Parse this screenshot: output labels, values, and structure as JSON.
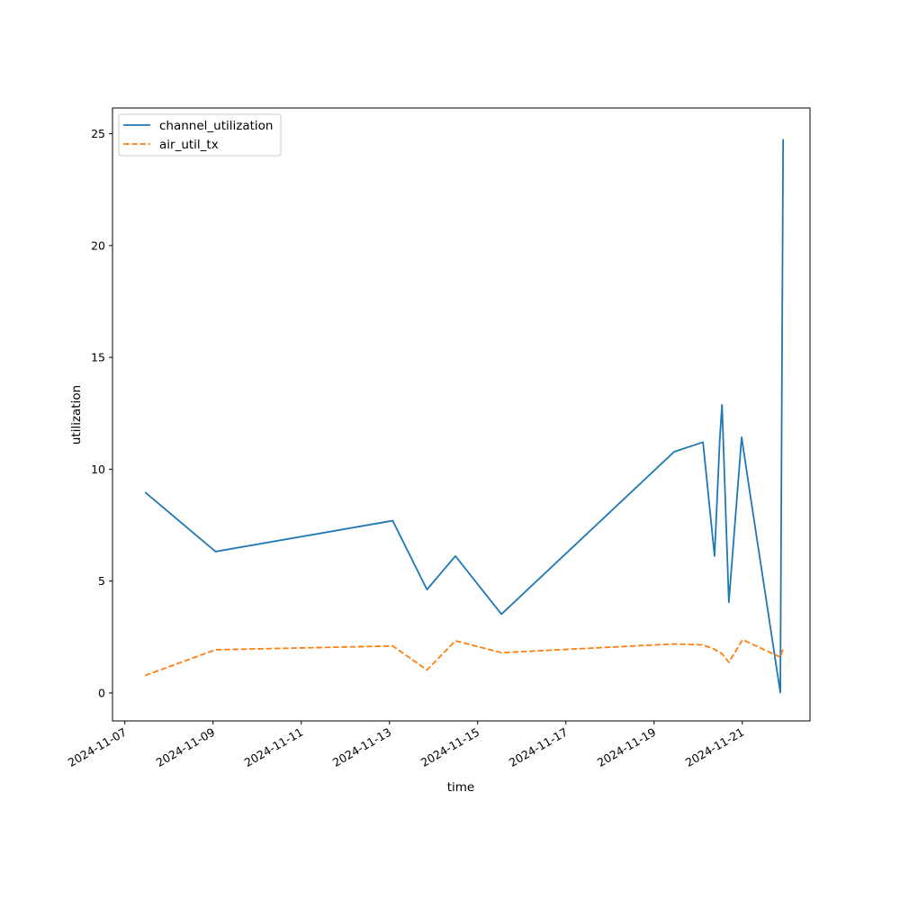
{
  "chart_data": {
    "type": "line",
    "title": "",
    "xlabel": "time",
    "ylabel": "utilization",
    "x_type": "date",
    "xlim": [
      "2024-11-06T17:17:00",
      "2024-11-22T12:50:00"
    ],
    "ylim": [
      -1.25,
      26.15
    ],
    "x_ticks": [
      "2024-11-07",
      "2024-11-09",
      "2024-11-11",
      "2024-11-13",
      "2024-11-15",
      "2024-11-17",
      "2024-11-19",
      "2024-11-21"
    ],
    "x_tick_labels": [
      "2024-11-07",
      "2024-11-09",
      "2024-11-11",
      "2024-11-13",
      "2024-11-15",
      "2024-11-17",
      "2024-11-19",
      "2024-11-21"
    ],
    "y_ticks": [
      0,
      5,
      10,
      15,
      20,
      25
    ],
    "y_tick_labels": [
      "0",
      "5",
      "10",
      "15",
      "20",
      "25"
    ],
    "grid": false,
    "legend_position": "top-left",
    "series": [
      {
        "name": "channel_utilization",
        "color": "#1f77b4",
        "style": "solid",
        "points": [
          {
            "x": "2024-11-07T11:01:00",
            "y": 8.97
          },
          {
            "x": "2024-11-09T01:20:00",
            "y": 6.32
          },
          {
            "x": "2024-11-13T01:46:00",
            "y": 7.7
          },
          {
            "x": "2024-11-13T20:24:00",
            "y": 4.62
          },
          {
            "x": "2024-11-14T11:53:00",
            "y": 6.12
          },
          {
            "x": "2024-11-15T12:55:00",
            "y": 3.52
          },
          {
            "x": "2024-11-19T10:53:00",
            "y": 10.78
          },
          {
            "x": "2024-11-20T02:37:00",
            "y": 11.21
          },
          {
            "x": "2024-11-20T08:54:00",
            "y": 6.12
          },
          {
            "x": "2024-11-20T11:48:00",
            "y": 11.43
          },
          {
            "x": "2024-11-20T12:58:00",
            "y": 12.88
          },
          {
            "x": "2024-11-20T16:40:00",
            "y": 4.05
          },
          {
            "x": "2024-11-20T23:38:00",
            "y": 11.43
          },
          {
            "x": "2024-11-21T04:14:00",
            "y": 8.9
          },
          {
            "x": "2024-11-21T20:41:00",
            "y": 0.02
          },
          {
            "x": "2024-11-21T22:13:00",
            "y": 24.75
          }
        ]
      },
      {
        "name": "air_util_tx",
        "color": "#ff7f0e",
        "style": "dashed",
        "points": [
          {
            "x": "2024-11-07T11:01:00",
            "y": 0.78
          },
          {
            "x": "2024-11-09T01:20:00",
            "y": 1.93
          },
          {
            "x": "2024-11-13T01:46:00",
            "y": 2.1
          },
          {
            "x": "2024-11-13T20:24:00",
            "y": 1.03
          },
          {
            "x": "2024-11-14T11:53:00",
            "y": 2.33
          },
          {
            "x": "2024-11-15T12:55:00",
            "y": 1.8
          },
          {
            "x": "2024-11-19T10:53:00",
            "y": 2.19
          },
          {
            "x": "2024-11-20T02:37:00",
            "y": 2.15
          },
          {
            "x": "2024-11-20T08:54:00",
            "y": 1.95
          },
          {
            "x": "2024-11-20T12:58:00",
            "y": 1.75
          },
          {
            "x": "2024-11-20T16:40:00",
            "y": 1.37
          },
          {
            "x": "2024-11-21T00:09:00",
            "y": 2.38
          },
          {
            "x": "2024-11-21T20:41:00",
            "y": 1.6
          },
          {
            "x": "2024-11-21T22:13:00",
            "y": 1.98
          }
        ]
      }
    ]
  }
}
